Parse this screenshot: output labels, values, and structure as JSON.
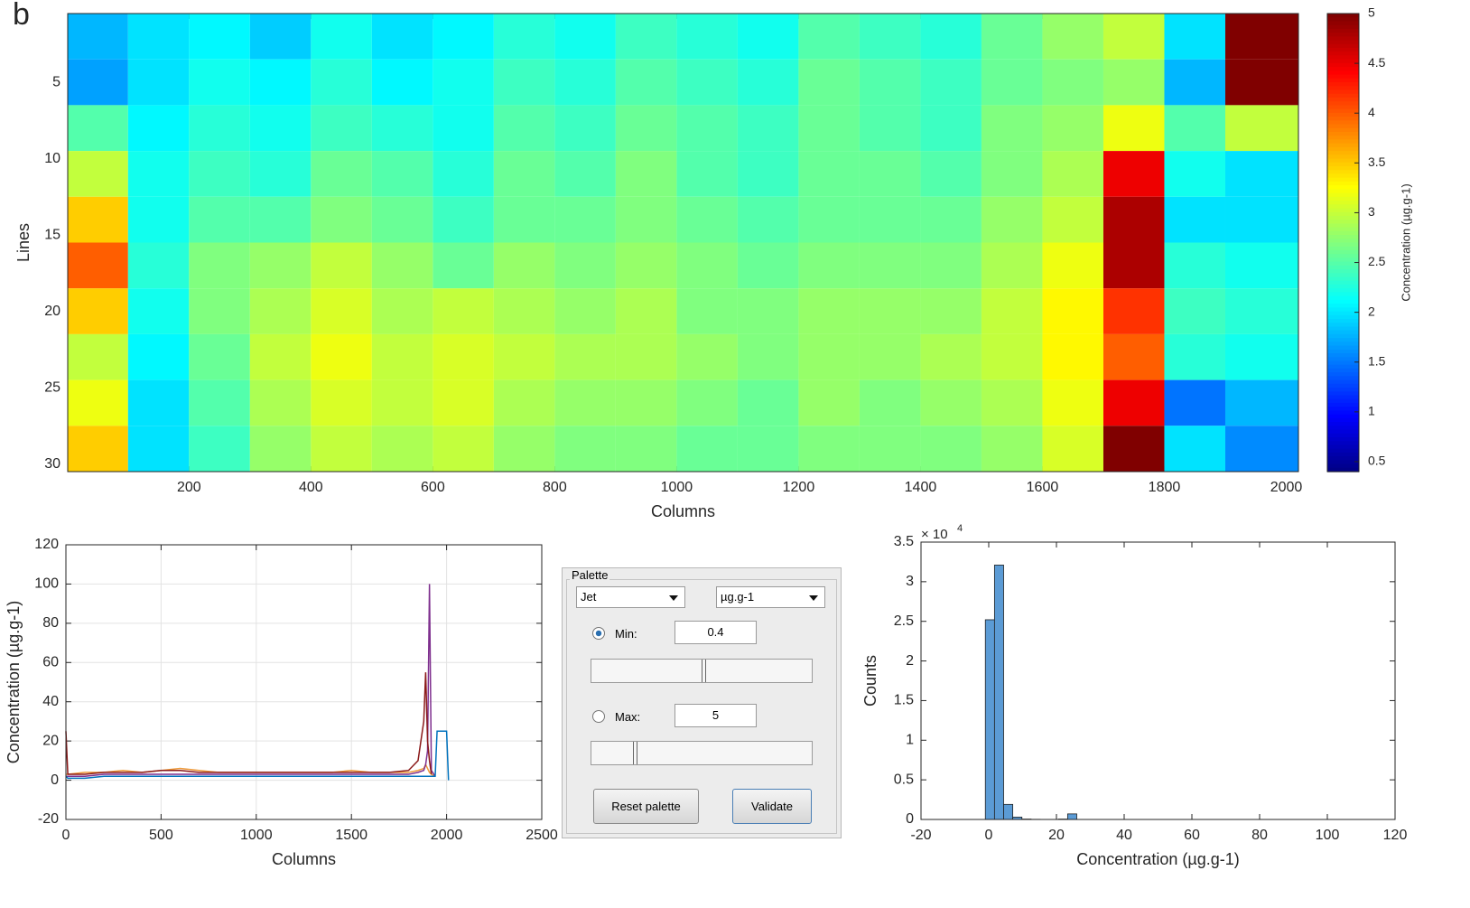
{
  "figure_label": "b",
  "chart_data": [
    {
      "type": "heatmap",
      "xlabel": "Columns",
      "ylabel": "Lines",
      "colormap": "jet",
      "xlim": [
        1,
        2020
      ],
      "ylim": [
        0.5,
        30.5
      ],
      "y_reversed": true,
      "grid": false,
      "xticks": [
        200,
        400,
        600,
        800,
        1000,
        1200,
        1400,
        1600,
        1800,
        2000
      ],
      "yticks": [
        5,
        10,
        15,
        20,
        25,
        30
      ],
      "x_bins": [
        1,
        100,
        200,
        300,
        400,
        500,
        600,
        700,
        800,
        900,
        1000,
        1100,
        1200,
        1300,
        1400,
        1500,
        1600,
        1700,
        1800,
        1900,
        2020
      ],
      "y_bins": [
        0.5,
        3.5,
        6.5,
        9.5,
        12.5,
        15.5,
        18.5,
        21.5,
        24.5,
        27.5,
        30.5
      ],
      "z": [
        [
          1.8,
          2.0,
          2.1,
          1.9,
          2.2,
          2.0,
          2.1,
          2.3,
          2.2,
          2.4,
          2.3,
          2.2,
          2.5,
          2.4,
          2.3,
          2.6,
          2.8,
          3.0,
          2.0,
          5
        ],
        [
          1.7,
          2.0,
          2.2,
          2.1,
          2.3,
          2.1,
          2.2,
          2.4,
          2.3,
          2.5,
          2.4,
          2.3,
          2.6,
          2.5,
          2.4,
          2.6,
          2.7,
          2.8,
          1.8,
          5
        ],
        [
          2.5,
          2.1,
          2.3,
          2.2,
          2.4,
          2.3,
          2.2,
          2.5,
          2.4,
          2.6,
          2.5,
          2.4,
          2.6,
          2.5,
          2.4,
          2.7,
          2.8,
          3.2,
          2.5,
          3.0
        ],
        [
          3.0,
          2.2,
          2.4,
          2.3,
          2.6,
          2.5,
          2.3,
          2.6,
          2.5,
          2.7,
          2.5,
          2.4,
          2.6,
          2.6,
          2.5,
          2.7,
          2.9,
          4.5,
          2.2,
          2.0
        ],
        [
          3.5,
          2.2,
          2.5,
          2.5,
          2.7,
          2.6,
          2.4,
          2.6,
          2.6,
          2.7,
          2.6,
          2.5,
          2.6,
          2.6,
          2.6,
          2.8,
          3.0,
          4.8,
          2.0,
          2.0
        ],
        [
          4.0,
          2.3,
          2.7,
          2.8,
          3.0,
          2.8,
          2.6,
          2.8,
          2.7,
          2.8,
          2.7,
          2.6,
          2.7,
          2.7,
          2.7,
          2.9,
          3.2,
          4.8,
          2.3,
          2.2
        ],
        [
          3.5,
          2.2,
          2.7,
          2.9,
          3.1,
          2.9,
          3.0,
          2.9,
          2.8,
          2.9,
          2.7,
          2.7,
          2.8,
          2.8,
          2.8,
          3.0,
          3.3,
          4.2,
          2.4,
          2.3
        ],
        [
          3.0,
          2.1,
          2.6,
          3.0,
          3.2,
          3.0,
          3.1,
          3.0,
          2.9,
          2.9,
          2.8,
          2.7,
          2.8,
          2.8,
          2.9,
          3.0,
          3.3,
          4.0,
          2.3,
          2.2
        ],
        [
          3.2,
          2.0,
          2.5,
          2.9,
          3.1,
          3.0,
          3.1,
          2.9,
          2.8,
          2.8,
          2.7,
          2.6,
          2.8,
          2.7,
          2.8,
          2.9,
          3.2,
          4.5,
          1.5,
          1.8
        ],
        [
          3.5,
          2.0,
          2.4,
          2.8,
          3.0,
          2.9,
          3.0,
          2.8,
          2.7,
          2.7,
          2.6,
          2.6,
          2.7,
          2.7,
          2.7,
          2.8,
          3.1,
          5,
          2.0,
          1.6
        ]
      ],
      "clim": [
        0.4,
        5
      ],
      "colorbar": {
        "label": "Concentration (µg.g-1)",
        "ticks": [
          0.5,
          1,
          1.5,
          2,
          2.5,
          3,
          3.5,
          4,
          4.5,
          5
        ]
      }
    },
    {
      "type": "line",
      "xlabel": "Columns",
      "ylabel": "Concentration (µg.g-1)",
      "grid": true,
      "xlim": [
        0,
        2500
      ],
      "ylim": [
        -20,
        120
      ],
      "xticks": [
        0,
        500,
        1000,
        1500,
        2000,
        2500
      ],
      "yticks": [
        -20,
        0,
        20,
        40,
        60,
        80,
        100,
        120
      ],
      "x": [
        0,
        10,
        100,
        200,
        300,
        400,
        500,
        600,
        700,
        800,
        900,
        1000,
        1100,
        1200,
        1300,
        1400,
        1500,
        1600,
        1700,
        1800,
        1850,
        1880,
        1890,
        1900,
        1910,
        1920,
        1940,
        1950,
        2000,
        2010
      ],
      "series": [
        {
          "color": "#ed9a3a",
          "values": [
            3,
            3,
            4,
            4,
            5,
            4,
            5,
            6,
            5,
            4,
            4,
            4,
            4,
            4,
            4,
            4,
            5,
            4,
            4,
            4,
            5,
            6,
            8,
            6,
            4,
            3,
            2,
            null,
            null,
            null
          ]
        },
        {
          "color": "#7e2f8e",
          "values": [
            2,
            2,
            2,
            3,
            3,
            3,
            3,
            3,
            3,
            3,
            3,
            3,
            3,
            3,
            3,
            3,
            3,
            3,
            3,
            3,
            4,
            5,
            8,
            15,
            100,
            5,
            2,
            null,
            null,
            null
          ]
        },
        {
          "color": "#8b1a1a",
          "values": [
            25,
            3,
            3,
            4,
            4,
            4,
            5,
            5,
            4,
            4,
            4,
            4,
            4,
            4,
            4,
            4,
            4,
            4,
            4,
            5,
            10,
            30,
            55,
            20,
            10,
            3,
            null,
            null,
            null,
            null
          ]
        },
        {
          "color": "#0072bd",
          "values": [
            2,
            1,
            1,
            2,
            2,
            2,
            2,
            2,
            2,
            2,
            2,
            2,
            2,
            2,
            2,
            2,
            2,
            2,
            2,
            2,
            2,
            2,
            2,
            2,
            2,
            2,
            2,
            25,
            25,
            0
          ]
        }
      ]
    },
    {
      "type": "histogram",
      "xlabel": "Concentration (µg.g-1)",
      "ylabel": "Counts",
      "grid": false,
      "color": "#5b9bd5",
      "xlim": [
        -20,
        120
      ],
      "ylim": [
        0,
        35000
      ],
      "xticks": [
        -20,
        0,
        20,
        40,
        60,
        80,
        100,
        120
      ],
      "yticks": [
        0,
        {
          "value": 5000,
          "label": "0.5"
        },
        {
          "value": 10000,
          "label": "1"
        },
        {
          "value": 15000,
          "label": "1.5"
        },
        {
          "value": 20000,
          "label": "2"
        },
        {
          "value": 25000,
          "label": "2.5"
        },
        {
          "value": 30000,
          "label": "3"
        },
        {
          "value": 35000,
          "label": "3.5"
        }
      ],
      "y_exponent_base": "× 10",
      "y_exponent": "4",
      "bins": [
        -1,
        1.7,
        4.4,
        7.1,
        9.8,
        12.5,
        15.2,
        17.9,
        20.6,
        23.3,
        26.0
      ],
      "counts": [
        25200,
        32100,
        1900,
        300,
        50,
        20,
        10,
        10,
        50,
        700
      ]
    }
  ],
  "palette_panel": {
    "title": "Palette",
    "colormap_option": "Jet",
    "unit_option": "µg.g-1",
    "min_label": "Min:",
    "min_value": "0.4",
    "max_label": "Max:",
    "max_value": "5",
    "reset_button": "Reset palette",
    "validate_button": "Validate"
  }
}
